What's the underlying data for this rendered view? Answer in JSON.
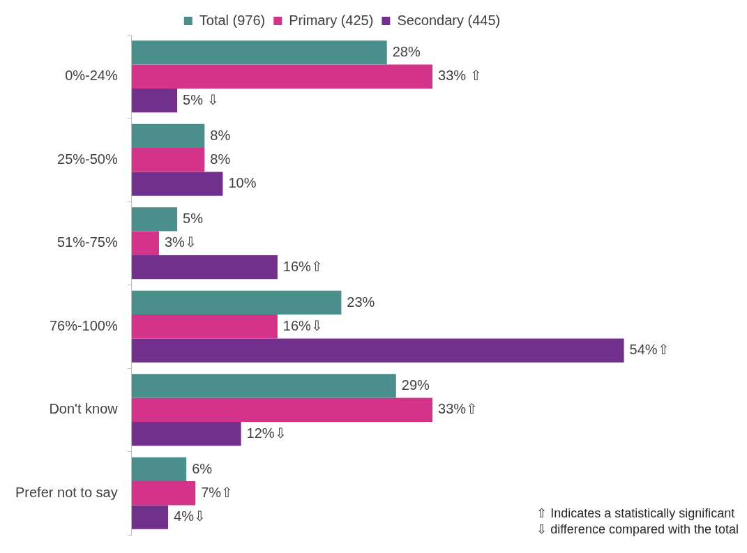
{
  "chart_data": {
    "type": "bar",
    "orientation": "horizontal",
    "categories": [
      "0%-24%",
      "25%-50%",
      "51%-75%",
      "76%-100%",
      "Don't know",
      "Prefer not to say"
    ],
    "series": [
      {
        "name": "Total (976)",
        "color": "#4a8f8c",
        "values": [
          28,
          8,
          5,
          23,
          29,
          6
        ],
        "value_labels": [
          "28%",
          "8%",
          "5%",
          "23%",
          "29%",
          "6%"
        ]
      },
      {
        "name": "Primary (425)",
        "color": "#d3348a",
        "values": [
          33,
          8,
          3,
          16,
          33,
          7
        ],
        "value_labels": [
          "33% ⇧",
          "8%",
          "3%⇩",
          "16%⇩",
          "33%⇧",
          "7%⇧"
        ]
      },
      {
        "name": "Secondary (445)",
        "color": "#71308b",
        "values": [
          5,
          10,
          16,
          54,
          12,
          4
        ],
        "value_labels": [
          "5% ⇩",
          "10%",
          "16%⇧",
          "54%⇧",
          "12%⇩",
          "4%⇩"
        ]
      }
    ],
    "legend": "top",
    "grid": false,
    "annotations": [
      "⇧ Indicates a statistically significant",
      "⇩ difference compared with the total"
    ]
  }
}
